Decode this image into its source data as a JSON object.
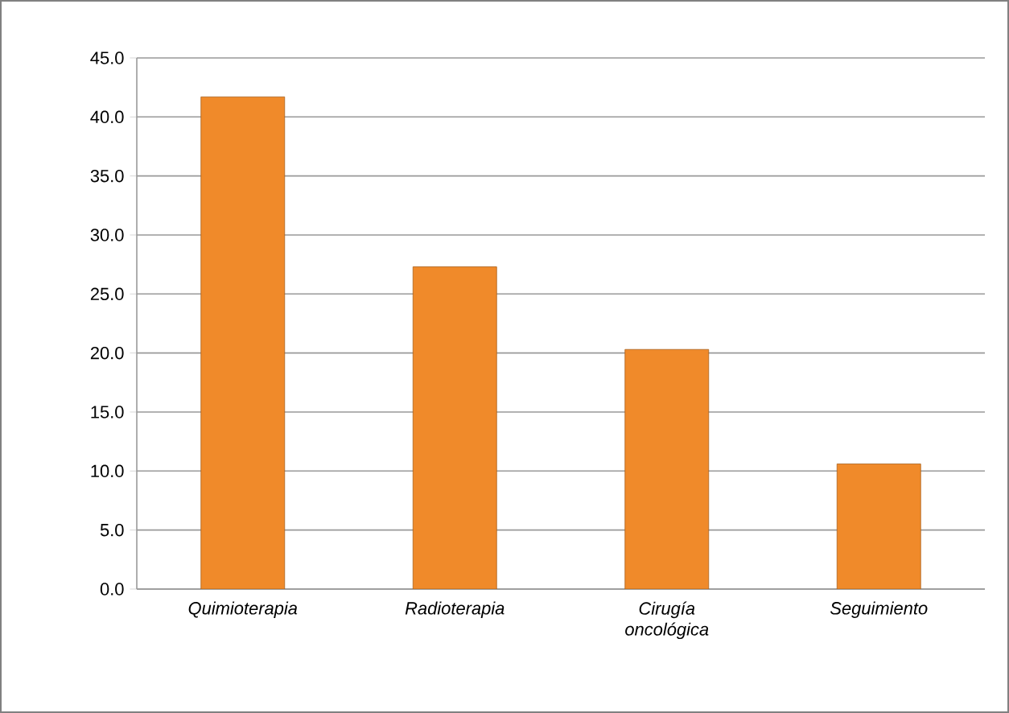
{
  "chart_data": {
    "type": "bar",
    "categories": [
      "Quimioterapia",
      "Radioterapia",
      "Cirugía oncológica",
      "Seguimiento"
    ],
    "values": [
      41.7,
      27.3,
      20.3,
      10.6
    ],
    "color": "#f08a2a",
    "ylim": [
      0,
      45
    ],
    "yticks": [
      {
        "value": 0,
        "label": "0.0"
      },
      {
        "value": 5,
        "label": "5.0"
      },
      {
        "value": 10,
        "label": "10.0"
      },
      {
        "value": 15,
        "label": "15.0"
      },
      {
        "value": 20,
        "label": "20.0"
      },
      {
        "value": 25,
        "label": "25.0"
      },
      {
        "value": 30,
        "label": "30.0"
      },
      {
        "value": 35,
        "label": "35.0"
      },
      {
        "value": 40,
        "label": "40.0"
      },
      {
        "value": 45,
        "label": "45.0"
      }
    ],
    "grid": "y"
  }
}
